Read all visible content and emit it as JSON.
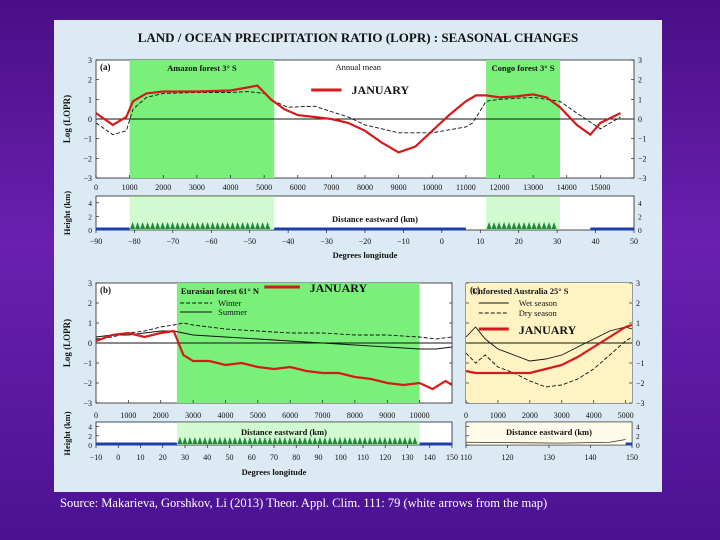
{
  "figure_title": "LAND / OCEAN PRECIPITATION RATIO (LOPR) : SEASONAL CHANGES",
  "source_note": "Source: Makarieva, Gorshkov, Li (2013) Theor. Appl. Clim. 111: 79 (white arrows from the map)",
  "colors": {
    "background": "#5a1aa0",
    "panel": "#dceaf4",
    "forest_green": "#7af07a",
    "australia_yellow": "#fff3c4",
    "january_red": "#d41a1a",
    "ocean_blue": "#1e3ea8",
    "tree_green": "#1f8a3a"
  },
  "chart_data": [
    {
      "id": "a",
      "type": "line",
      "panel_label": "(a)",
      "ylabel": "Log (LOPR)",
      "ylim": [
        -3,
        3
      ],
      "yticks": [
        3,
        2,
        1,
        0,
        -1,
        -2,
        -3
      ],
      "shaded_regions": [
        {
          "label": "Amazon forest 3° S",
          "from_km": 1000,
          "to_km": 5300
        },
        {
          "label": "Congo forest 3° S",
          "from_km": 11600,
          "to_km": 13800
        }
      ],
      "legend": {
        "annual": "Annual mean",
        "january": "JANUARY"
      },
      "xlabel": "Distance eastward (km)",
      "xlim": [
        0,
        16000
      ],
      "xticks": [
        0,
        1000,
        2000,
        3000,
        4000,
        5000,
        6000,
        7000,
        8000,
        9000,
        10000,
        11000,
        12000,
        13000,
        14000,
        15000
      ],
      "series": [
        {
          "name": "Annual mean",
          "style": "dashed",
          "x": [
            0,
            500,
            900,
            1100,
            1500,
            2000,
            3000,
            4000,
            4500,
            5000,
            5300,
            5700,
            6500,
            7500,
            8000,
            8500,
            9000,
            10000,
            11000,
            11200,
            11600,
            12000,
            13000,
            13800,
            14300,
            15000,
            15600
          ],
          "y": [
            -0.2,
            -0.8,
            -0.6,
            0.5,
            1.1,
            1.3,
            1.35,
            1.35,
            1.4,
            1.3,
            0.9,
            0.6,
            0.65,
            0.1,
            -0.3,
            -0.5,
            -0.7,
            -0.7,
            -0.4,
            -0.2,
            0.9,
            1.0,
            1.1,
            0.9,
            0.3,
            -0.5,
            0.1
          ]
        },
        {
          "name": "JANUARY",
          "style": "solid",
          "x": [
            0,
            500,
            900,
            1100,
            1500,
            2000,
            3000,
            4000,
            4500,
            4800,
            5200,
            5600,
            6000,
            6500,
            7000,
            7500,
            8000,
            8500,
            9000,
            9500,
            10000,
            10500,
            11000,
            11300,
            11600,
            12000,
            12500,
            13000,
            13400,
            13800,
            14300,
            14700,
            15000,
            15600
          ],
          "y": [
            0.3,
            -0.3,
            0.1,
            0.9,
            1.3,
            1.4,
            1.4,
            1.45,
            1.6,
            1.7,
            1.0,
            0.5,
            0.2,
            0.1,
            0.0,
            -0.2,
            -0.6,
            -1.2,
            -1.7,
            -1.4,
            -0.6,
            0.2,
            0.9,
            1.2,
            1.2,
            1.1,
            1.15,
            1.25,
            1.1,
            0.6,
            -0.3,
            -0.8,
            -0.2,
            0.3
          ]
        }
      ],
      "height": {
        "ylabel": "Height (km)",
        "yticks": [
          4,
          2,
          0
        ],
        "degrees_label": "Degrees longitude",
        "degree_ticks": [
          -90,
          -80,
          -70,
          -60,
          -50,
          -40,
          -30,
          -20,
          -10,
          0,
          10,
          20,
          30,
          40,
          50
        ]
      }
    },
    {
      "id": "b",
      "type": "line",
      "panel_label": "(b)",
      "ylabel": "Log (LOPR)",
      "ylim": [
        -3,
        3
      ],
      "yticks": [
        3,
        2,
        1,
        0,
        -1,
        -2,
        -3
      ],
      "shaded_regions": [
        {
          "label": "Eurasian forest 61° N",
          "from_km": 2500,
          "to_km": 10000
        }
      ],
      "legend": {
        "winter": "Winter",
        "summer": "Summer",
        "january": "JANUARY"
      },
      "xlabel": "Distance eastward (km)",
      "xlim": [
        0,
        11000
      ],
      "xticks": [
        0,
        1000,
        2000,
        3000,
        4000,
        5000,
        6000,
        7000,
        8000,
        9000,
        10000
      ],
      "series": [
        {
          "name": "Winter",
          "style": "dashed",
          "x": [
            0,
            500,
            1000,
            1500,
            2000,
            2400,
            2700,
            3000,
            4000,
            5000,
            6000,
            7000,
            8000,
            9000,
            10000,
            10500,
            11000
          ],
          "y": [
            0.2,
            0.3,
            0.5,
            0.6,
            0.8,
            0.9,
            1.0,
            0.9,
            0.7,
            0.6,
            0.5,
            0.5,
            0.4,
            0.4,
            0.3,
            0.2,
            0.3
          ]
        },
        {
          "name": "Summer",
          "style": "solid-thin",
          "x": [
            0,
            500,
            1000,
            1500,
            2000,
            2400,
            2700,
            3000,
            4000,
            5000,
            6000,
            7000,
            8000,
            9000,
            10000,
            10500,
            11000
          ],
          "y": [
            0.3,
            0.4,
            0.4,
            0.5,
            0.6,
            0.6,
            0.5,
            0.4,
            0.3,
            0.2,
            0.1,
            0.0,
            -0.1,
            -0.2,
            -0.3,
            -0.3,
            -0.2
          ]
        },
        {
          "name": "JANUARY",
          "style": "solid",
          "x": [
            0,
            500,
            1000,
            1500,
            2000,
            2400,
            2700,
            3000,
            3500,
            4000,
            4500,
            5000,
            5500,
            6000,
            6500,
            7000,
            7500,
            8000,
            8500,
            9000,
            9500,
            10000,
            10400,
            10800,
            11000
          ],
          "y": [
            0.1,
            0.4,
            0.5,
            0.3,
            0.5,
            0.6,
            -0.6,
            -0.9,
            -0.9,
            -1.1,
            -1.0,
            -1.2,
            -1.3,
            -1.2,
            -1.4,
            -1.5,
            -1.5,
            -1.7,
            -1.8,
            -2.0,
            -2.1,
            -2.0,
            -2.3,
            -1.9,
            -2.1
          ]
        }
      ],
      "height": {
        "ylabel": "Height (km)",
        "yticks": [
          4,
          2,
          0
        ],
        "degrees_label": "Degrees longitude",
        "degree_ticks": [
          -10,
          0,
          10,
          20,
          30,
          40,
          50,
          60,
          70,
          80,
          90,
          100,
          110,
          120,
          130,
          140,
          150
        ]
      }
    },
    {
      "id": "c",
      "type": "line",
      "panel_label": "(c)",
      "ylim": [
        -3,
        3
      ],
      "yticks": [
        3,
        2,
        1,
        0,
        -1,
        -2,
        -3
      ],
      "shaded_regions": [
        {
          "label": "Unforested Australia 25° S",
          "from_km": 0,
          "to_km": 5200
        }
      ],
      "legend": {
        "wet": "Wet season",
        "dry": "Dry season",
        "january": "JANUARY"
      },
      "xlabel": "Distance eastward (km)",
      "xlim": [
        0,
        5200
      ],
      "xticks": [
        0,
        1000,
        2000,
        3000,
        4000,
        5000
      ],
      "series": [
        {
          "name": "Wet season",
          "style": "solid-thin",
          "x": [
            0,
            300,
            600,
            1000,
            1500,
            2000,
            2500,
            3000,
            3500,
            4000,
            4500,
            5000,
            5200
          ],
          "y": [
            0.3,
            0.8,
            0.2,
            -0.3,
            -0.6,
            -0.9,
            -0.8,
            -0.6,
            -0.2,
            0.2,
            0.6,
            0.8,
            0.7
          ]
        },
        {
          "name": "Dry season",
          "style": "dashed",
          "x": [
            0,
            300,
            600,
            1000,
            1500,
            2000,
            2500,
            3000,
            3500,
            4000,
            4500,
            5000,
            5200
          ],
          "y": [
            -0.5,
            -1.0,
            -0.6,
            -1.2,
            -1.5,
            -1.9,
            -2.2,
            -2.1,
            -1.8,
            -1.3,
            -0.6,
            0.1,
            0.3
          ]
        },
        {
          "name": "JANUARY",
          "style": "solid",
          "x": [
            0,
            300,
            600,
            1000,
            1500,
            2000,
            2500,
            3000,
            3500,
            4000,
            4500,
            5000,
            5200
          ],
          "y": [
            -1.4,
            -1.5,
            -1.5,
            -1.5,
            -1.5,
            -1.5,
            -1.3,
            -1.1,
            -0.7,
            -0.2,
            0.3,
            0.8,
            0.9
          ]
        }
      ],
      "height": {
        "yticks": [
          4,
          2,
          0
        ],
        "degree_ticks": [
          110,
          120,
          130,
          140,
          150
        ]
      }
    }
  ]
}
